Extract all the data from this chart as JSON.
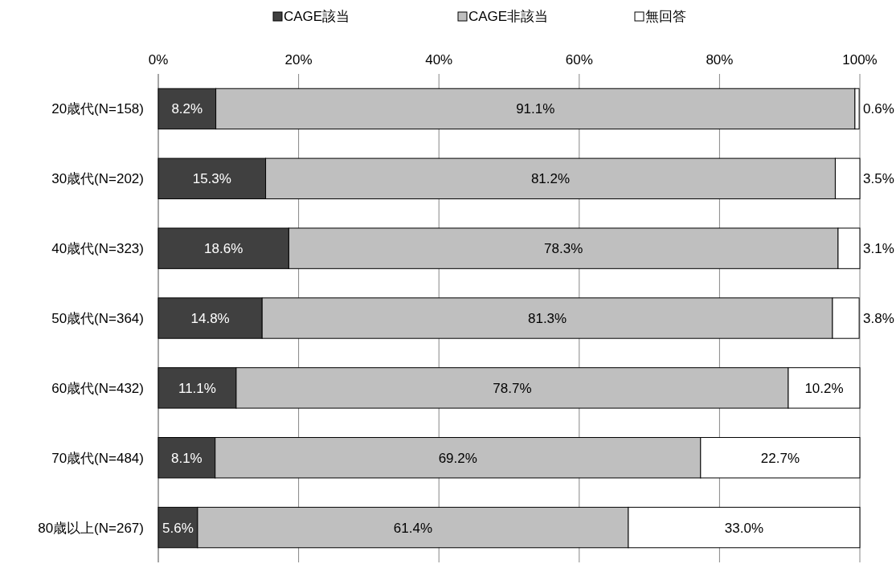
{
  "chart_data": {
    "type": "bar",
    "orientation": "horizontal",
    "stacked": true,
    "categories": [
      "20歳代(N=158)",
      "30歳代(N=202)",
      "40歳代(N=323)",
      "50歳代(N=364)",
      "60歳代(N=432)",
      "70歳代(N=484)",
      "80歳以上(N=267)"
    ],
    "series": [
      {
        "name": "CAGE該当",
        "color": "#404040",
        "values": [
          8.2,
          15.3,
          18.6,
          14.8,
          11.1,
          8.1,
          5.6
        ],
        "value_labels": [
          "8.2%",
          "15.3%",
          "18.6%",
          "14.8%",
          "11.1%",
          "8.1%",
          "5.6%"
        ]
      },
      {
        "name": "CAGE非該当",
        "color": "#bfbfbf",
        "values": [
          91.1,
          81.2,
          78.3,
          81.3,
          78.7,
          69.2,
          61.4
        ],
        "value_labels": [
          "91.1%",
          "81.2%",
          "78.3%",
          "81.3%",
          "78.7%",
          "69.2%",
          "61.4%"
        ]
      },
      {
        "name": "無回答",
        "color": "#ffffff",
        "values": [
          0.6,
          3.5,
          3.1,
          3.8,
          10.2,
          22.7,
          33.0
        ],
        "value_labels": [
          "0.6%",
          "3.5%",
          "3.1%",
          "3.8%",
          "10.2%",
          "22.7%",
          "33.0%"
        ]
      }
    ],
    "xlim": [
      0,
      100
    ],
    "xticks": [
      {
        "value": 0,
        "label": "0%"
      },
      {
        "value": 20,
        "label": "20%"
      },
      {
        "value": 40,
        "label": "40%"
      },
      {
        "value": 60,
        "label": "60%"
      },
      {
        "value": 80,
        "label": "80%"
      },
      {
        "value": 100,
        "label": "100%"
      }
    ],
    "grid": "x",
    "legend": "top"
  }
}
